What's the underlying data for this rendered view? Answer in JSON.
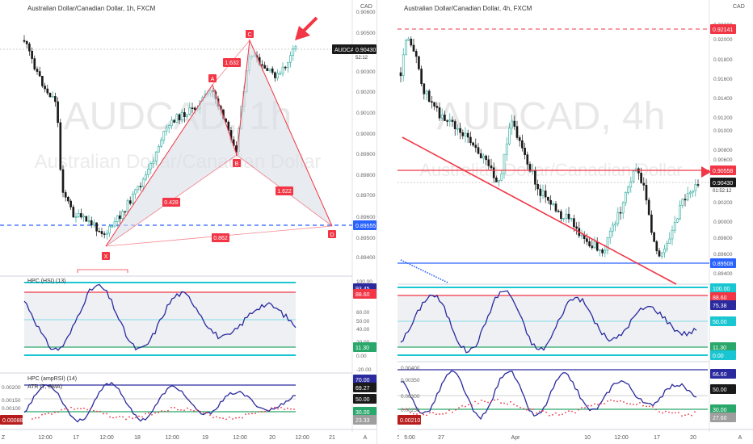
{
  "left": {
    "title": "Australian Dollar/Canadian Dollar, 1h, FXCM",
    "watermark_big": "AUDCAD, 1h",
    "watermark_small": "Australian Dollar/Canadian Dollar",
    "currency": "CAD",
    "price_ticks": [
      "0.90600",
      "0.90500",
      "0.90430",
      "0.90300",
      "0.90200",
      "0.90100",
      "0.90000",
      "0.89900",
      "0.89800",
      "0.89700",
      "0.89600",
      "0.89555",
      "0.89500",
      "0.89400"
    ],
    "price_tag": {
      "symbol": "AUDCAD",
      "price": "0.90430",
      "countdown": "52:12"
    },
    "blue_tag": "0.89555",
    "pattern_points": {
      "X": "X",
      "A": "A",
      "B": "B",
      "C": "C",
      "D": "D"
    },
    "ratios": {
      "xb": "0.428",
      "ac": "1.632",
      "bd": "1.622",
      "xd": "0.862"
    },
    "hsi_label": "HPC (HSI) (13)",
    "hsi_ticks": [
      "100.00",
      "93.45",
      "88.60",
      "60.00",
      "50.00",
      "40.00",
      "20.00",
      "11.30",
      "0.00",
      "-20.00"
    ],
    "amp_label": "HPC (ampRSI) (14)",
    "atr_label": "ATR (7, SMA)",
    "atr_ticks": [
      "0.00200",
      "0.00150",
      "0.00100",
      "0.00088"
    ],
    "amp_ticks": [
      "70.00",
      "69.27",
      "50.00",
      "30.00",
      "23.33"
    ],
    "time_ticks": [
      "Z",
      "12:00",
      "17",
      "12:00",
      "18",
      "12:00",
      "19",
      "12:00",
      "20",
      "12:00",
      "21",
      "A"
    ]
  },
  "right": {
    "title": "Australian Dollar/Canadian Dollar, 4h, FXCM",
    "watermark_big": "AUDCAD, 4h",
    "watermark_small": "Australian Dollar/Canadian Dollar",
    "currency": "CAD",
    "price_ticks": [
      "0.92200",
      "0.92141",
      "0.92000",
      "0.91800",
      "0.91600",
      "0.91400",
      "0.91200",
      "0.91000",
      "0.90800",
      "0.90600",
      "0.90558",
      "0.90430",
      "0.90200",
      "0.90000",
      "0.89800",
      "0.89600",
      "0.89508",
      "0.89400"
    ],
    "price_tag": {
      "price": "0.90430",
      "countdown": "01:52:12"
    },
    "red_tag": "0.90558",
    "top_red_tag": "0.92141",
    "blue_tag": "0.89508",
    "hsi_ticks": [
      "100.00",
      "88.60",
      "75.38",
      "50.00",
      "11.30",
      "0.00"
    ],
    "atr_ticks": [
      "0.00400",
      "0.00350",
      "0.00300",
      "0.00250",
      "0.00210"
    ],
    "amp_ticks": [
      "66.60",
      "50.00",
      "30.00",
      "27.60"
    ],
    "time_ticks": [
      "Z",
      "5:00",
      "27",
      "Apr",
      "10",
      "12:00",
      "17",
      "20",
      "A"
    ]
  },
  "colors": {
    "up": "#26a69a",
    "down": "#1a1a1a",
    "red": "#f23645",
    "blue": "#2962ff",
    "navy": "#2a2a9e",
    "teal": "#19c6d1",
    "green": "#2aa86b",
    "pattern_fill": "#d8dde6"
  }
}
